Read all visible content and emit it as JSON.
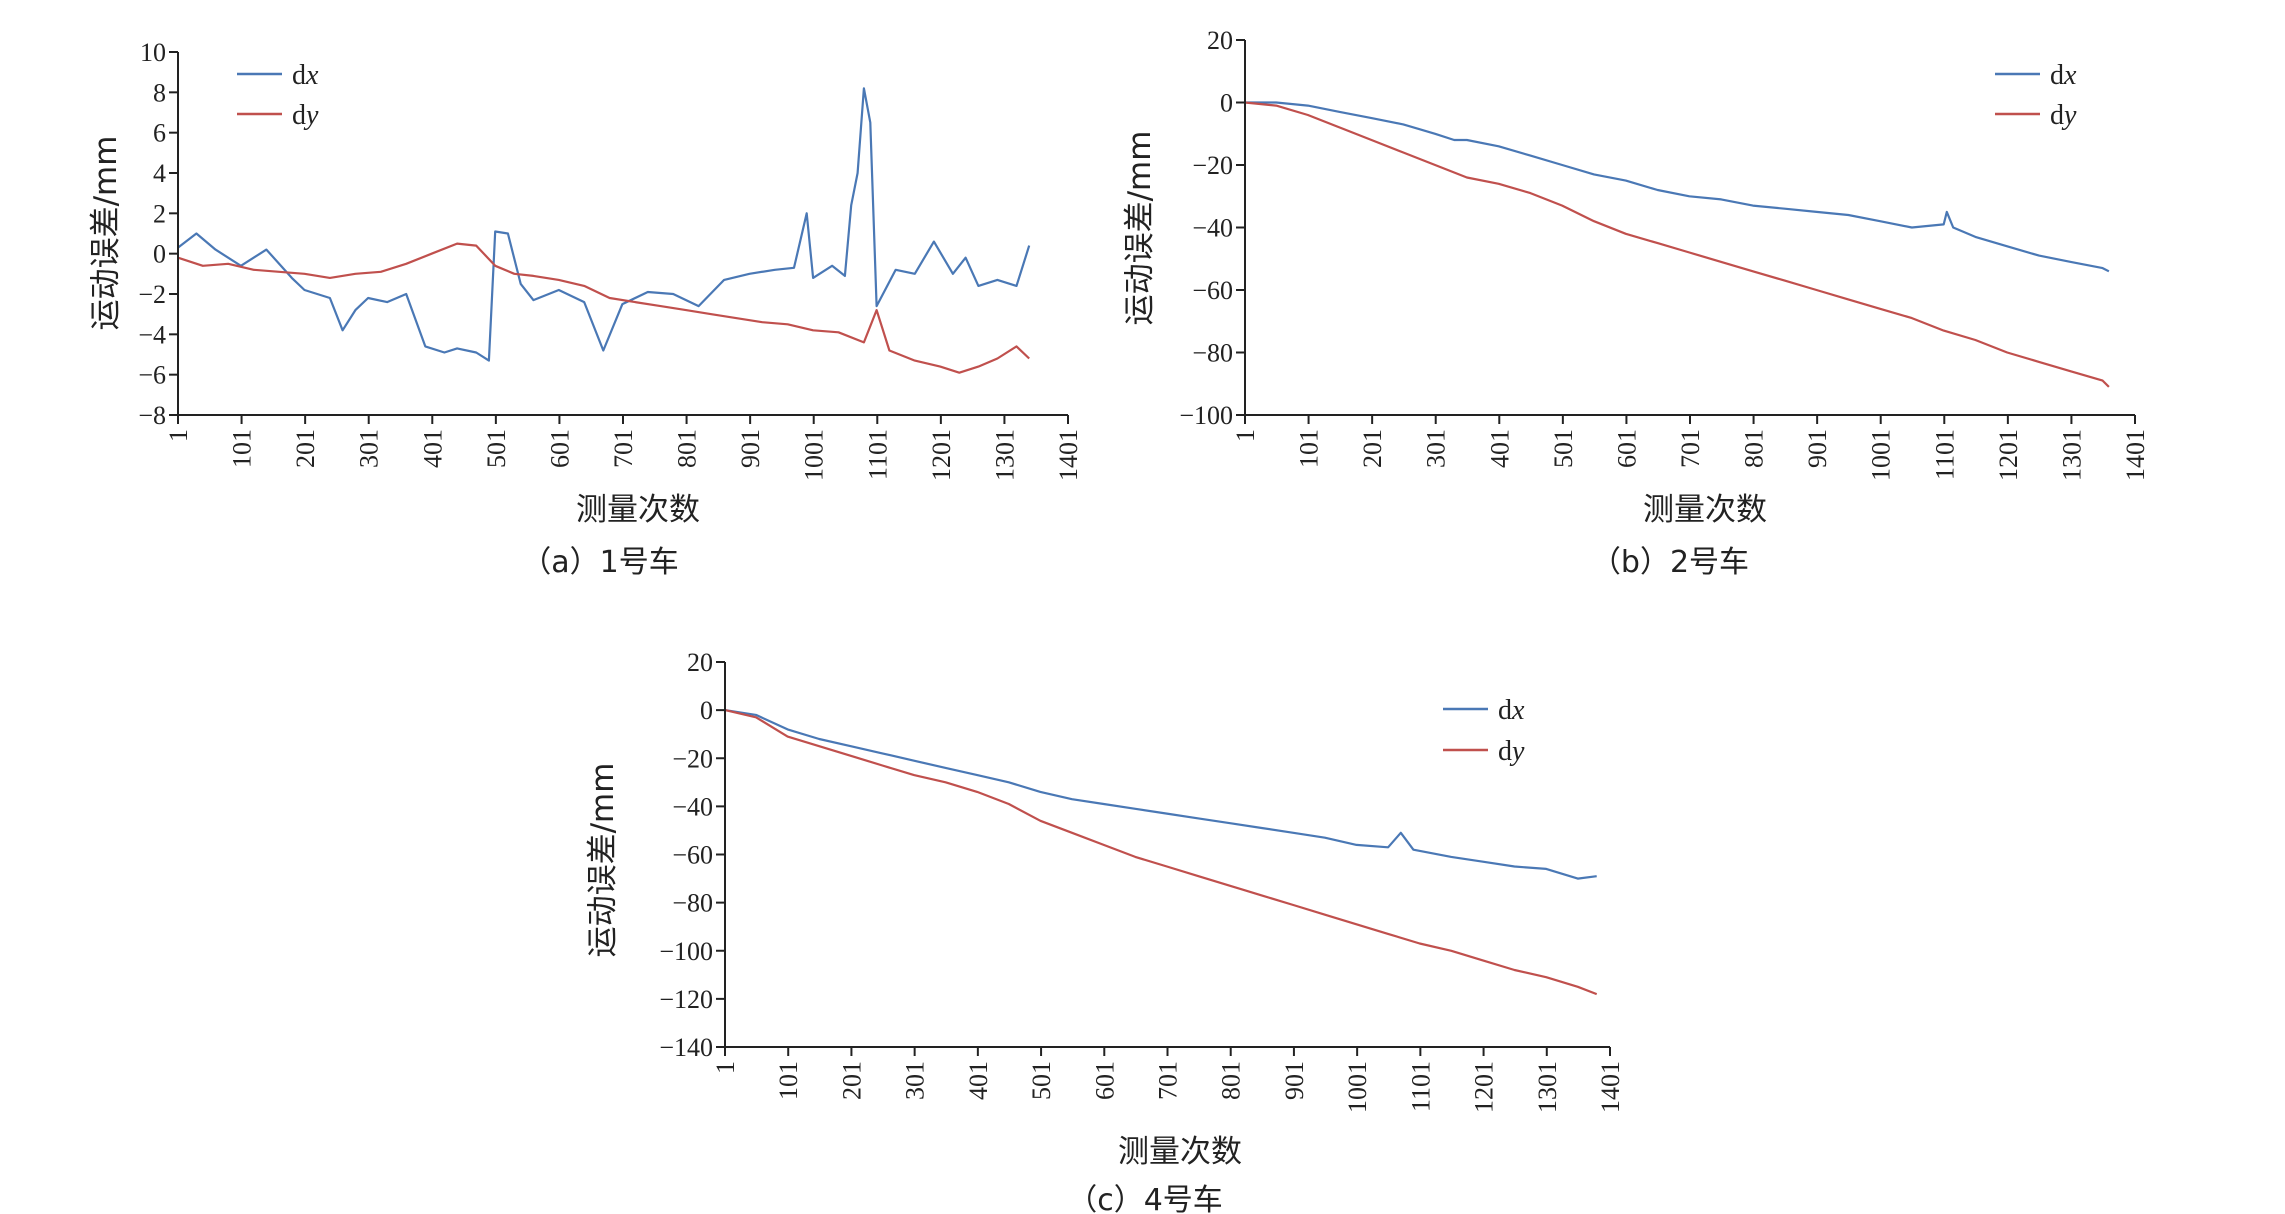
{
  "colors": {
    "dx": "#4a78b5",
    "dy": "#c0504d",
    "axis": "#222222"
  },
  "chart_data": [
    {
      "type": "line",
      "panel": "a",
      "caption": "（a）1号车",
      "xlabel": "测量次数",
      "ylabel": "运动误差/mm",
      "xlim": [
        1,
        1401
      ],
      "ylim": [
        -8,
        10
      ],
      "xticks": [
        "1",
        "101",
        "201",
        "301",
        "401",
        "501",
        "601",
        "701",
        "801",
        "901",
        "1001",
        "1101",
        "1201",
        "1301",
        "1401"
      ],
      "yticks": [
        "10",
        "8",
        "6",
        "4",
        "2",
        "0",
        "−2",
        "−4",
        "−6",
        "−8"
      ],
      "ytick_values": [
        10,
        8,
        6,
        4,
        2,
        0,
        -2,
        -4,
        -6,
        -8
      ],
      "legend": "top-left",
      "series": [
        {
          "name": "dx",
          "key": "dx",
          "x": [
            1,
            30,
            60,
            100,
            140,
            180,
            200,
            240,
            260,
            280,
            300,
            330,
            360,
            390,
            420,
            440,
            470,
            490,
            500,
            520,
            540,
            560,
            600,
            640,
            670,
            700,
            740,
            780,
            820,
            860,
            900,
            940,
            970,
            990,
            1000,
            1030,
            1050,
            1060,
            1070,
            1080,
            1090,
            1100,
            1130,
            1160,
            1190,
            1220,
            1240,
            1260,
            1290,
            1320,
            1340
          ],
          "y": [
            0.3,
            1.0,
            0.2,
            -0.6,
            0.2,
            -1.2,
            -1.8,
            -2.2,
            -3.8,
            -2.8,
            -2.2,
            -2.4,
            -2.0,
            -4.6,
            -4.9,
            -4.7,
            -4.9,
            -5.3,
            1.1,
            1.0,
            -1.5,
            -2.3,
            -1.8,
            -2.4,
            -4.8,
            -2.5,
            -1.9,
            -2.0,
            -2.6,
            -1.3,
            -1.0,
            -0.8,
            -0.7,
            2.0,
            -1.2,
            -0.6,
            -1.1,
            2.4,
            4.0,
            8.2,
            6.5,
            -2.6,
            -0.8,
            -1.0,
            0.6,
            -1.0,
            -0.2,
            -1.6,
            -1.3,
            -1.6,
            0.4
          ]
        },
        {
          "name": "dy",
          "key": "dy",
          "x": [
            1,
            40,
            80,
            120,
            160,
            200,
            240,
            280,
            320,
            360,
            400,
            440,
            470,
            500,
            530,
            560,
            600,
            640,
            680,
            720,
            760,
            800,
            840,
            880,
            920,
            960,
            1000,
            1040,
            1080,
            1100,
            1120,
            1160,
            1200,
            1230,
            1260,
            1290,
            1320,
            1340
          ],
          "y": [
            -0.2,
            -0.6,
            -0.5,
            -0.8,
            -0.9,
            -1.0,
            -1.2,
            -1.0,
            -0.9,
            -0.5,
            0.0,
            0.5,
            0.4,
            -0.6,
            -1.0,
            -1.1,
            -1.3,
            -1.6,
            -2.2,
            -2.4,
            -2.6,
            -2.8,
            -3.0,
            -3.2,
            -3.4,
            -3.5,
            -3.8,
            -3.9,
            -4.4,
            -2.8,
            -4.8,
            -5.3,
            -5.6,
            -5.9,
            -5.6,
            -5.2,
            -4.6,
            -5.2
          ]
        }
      ]
    },
    {
      "type": "line",
      "panel": "b",
      "caption": "（b）2号车",
      "xlabel": "测量次数",
      "ylabel": "运动误差/mm",
      "xlim": [
        1,
        1401
      ],
      "ylim": [
        -100,
        20
      ],
      "xticks": [
        "1",
        "101",
        "201",
        "301",
        "401",
        "501",
        "601",
        "701",
        "801",
        "901",
        "1001",
        "1101",
        "1201",
        "1301",
        "1401"
      ],
      "yticks": [
        "20",
        "0",
        "−20",
        "−40",
        "−60",
        "−80",
        "−100"
      ],
      "ytick_values": [
        20,
        0,
        -20,
        -40,
        -60,
        -80,
        -100
      ],
      "legend": "top-right",
      "series": [
        {
          "name": "dx",
          "key": "dx",
          "x": [
            1,
            50,
            100,
            150,
            200,
            250,
            300,
            330,
            350,
            400,
            450,
            500,
            550,
            600,
            650,
            700,
            750,
            800,
            850,
            900,
            950,
            1000,
            1050,
            1100,
            1105,
            1115,
            1150,
            1200,
            1250,
            1300,
            1350,
            1360
          ],
          "y": [
            0,
            0,
            -1,
            -3,
            -5,
            -7,
            -10,
            -12,
            -12,
            -14,
            -17,
            -20,
            -23,
            -25,
            -28,
            -30,
            -31,
            -33,
            -34,
            -35,
            -36,
            -38,
            -40,
            -39,
            -35,
            -40,
            -43,
            -46,
            -49,
            -51,
            -53,
            -54
          ]
        },
        {
          "name": "dy",
          "key": "dy",
          "x": [
            1,
            50,
            100,
            150,
            200,
            250,
            300,
            350,
            400,
            450,
            500,
            550,
            600,
            650,
            700,
            750,
            800,
            850,
            900,
            950,
            1000,
            1050,
            1100,
            1150,
            1200,
            1250,
            1300,
            1350,
            1360
          ],
          "y": [
            0,
            -1,
            -4,
            -8,
            -12,
            -16,
            -20,
            -24,
            -26,
            -29,
            -33,
            -38,
            -42,
            -45,
            -48,
            -51,
            -54,
            -57,
            -60,
            -63,
            -66,
            -69,
            -73,
            -76,
            -80,
            -83,
            -86,
            -89,
            -91
          ]
        }
      ]
    },
    {
      "type": "line",
      "panel": "c",
      "caption": "（c）4号车",
      "xlabel": "测量次数",
      "ylabel": "运动误差/mm",
      "xlim": [
        1,
        1401
      ],
      "ylim": [
        -140,
        20
      ],
      "xticks": [
        "1",
        "101",
        "201",
        "301",
        "401",
        "501",
        "601",
        "701",
        "801",
        "901",
        "1001",
        "1101",
        "1201",
        "1301",
        "1401"
      ],
      "yticks": [
        "20",
        "0",
        "−20",
        "−40",
        "−60",
        "−80",
        "−100",
        "−120",
        "−140"
      ],
      "ytick_values": [
        20,
        0,
        -20,
        -40,
        -60,
        -80,
        -100,
        -120,
        -140
      ],
      "legend": "top-right",
      "series": [
        {
          "name": "dx",
          "key": "dx",
          "x": [
            1,
            50,
            100,
            150,
            200,
            250,
            300,
            350,
            400,
            450,
            500,
            550,
            600,
            650,
            700,
            750,
            800,
            850,
            900,
            950,
            1000,
            1050,
            1070,
            1090,
            1150,
            1200,
            1250,
            1300,
            1350,
            1380
          ],
          "y": [
            0,
            -2,
            -8,
            -12,
            -15,
            -18,
            -21,
            -24,
            -27,
            -30,
            -34,
            -37,
            -39,
            -41,
            -43,
            -45,
            -47,
            -49,
            -51,
            -53,
            -56,
            -57,
            -51,
            -58,
            -61,
            -63,
            -65,
            -66,
            -70,
            -69
          ]
        },
        {
          "name": "dy",
          "key": "dy",
          "x": [
            1,
            50,
            100,
            150,
            200,
            250,
            300,
            350,
            400,
            450,
            500,
            550,
            600,
            650,
            700,
            750,
            800,
            850,
            900,
            950,
            1000,
            1050,
            1100,
            1150,
            1200,
            1250,
            1300,
            1350,
            1380
          ],
          "y": [
            0,
            -3,
            -11,
            -15,
            -19,
            -23,
            -27,
            -30,
            -34,
            -39,
            -46,
            -51,
            -56,
            -61,
            -65,
            -69,
            -73,
            -77,
            -81,
            -85,
            -89,
            -93,
            -97,
            -100,
            -104,
            -108,
            -111,
            -115,
            -118
          ]
        }
      ]
    }
  ]
}
